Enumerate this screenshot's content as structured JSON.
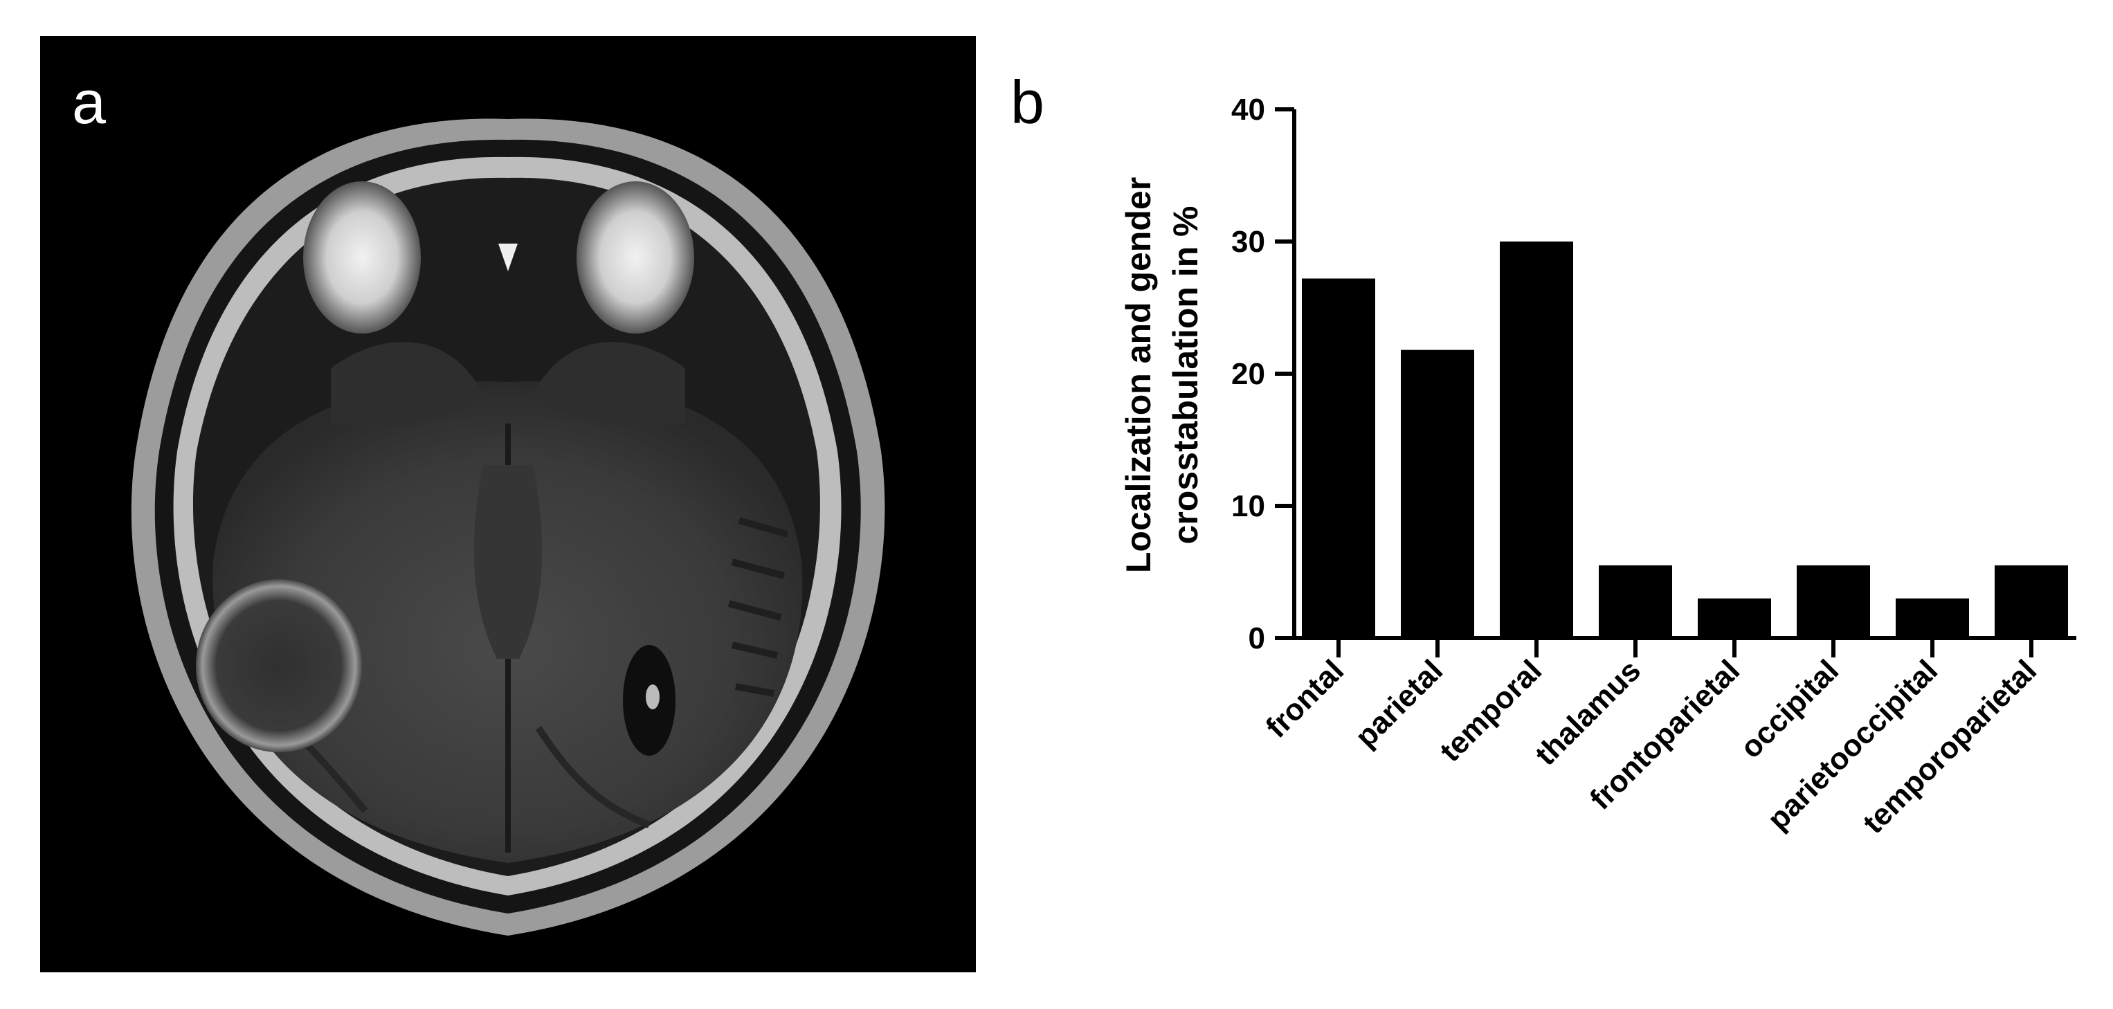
{
  "panels": {
    "a_label": "a",
    "b_label": "b"
  },
  "chart_data": {
    "type": "bar",
    "categories": [
      "frontal",
      "parietal",
      "temporal",
      "thalamus",
      "frontoparietal",
      "occipital",
      "parietooccipital",
      "temporoparietal"
    ],
    "values": [
      27.2,
      21.8,
      30.0,
      5.5,
      3.0,
      5.5,
      3.0,
      5.5
    ],
    "ylabel": "Localization and gender crosstabulation in %",
    "ylabel_lines": [
      "Localization and gender",
      "crosstabulation in  %"
    ],
    "xlabel": "",
    "ylim": [
      0,
      40
    ],
    "yticks": [
      0,
      10,
      20,
      30,
      40
    ],
    "bar_color": "#000000",
    "grid": false,
    "legend": "none"
  }
}
